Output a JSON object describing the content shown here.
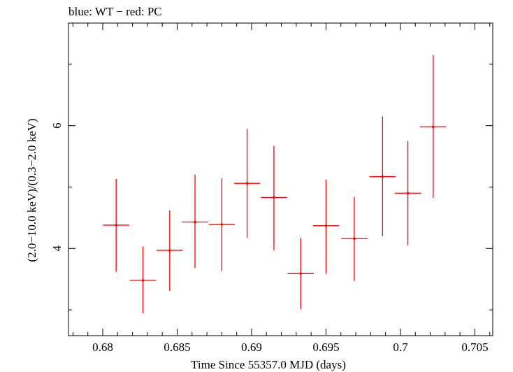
{
  "chart_data": {
    "type": "scatter",
    "title": "blue: WT − red: PC",
    "xlabel": "Time Since 55357.0 MJD (days)",
    "ylabel": "(2.0−10.0 keV)/(0.3−2.0 keV)",
    "xlim": [
      0.6777,
      0.7062
    ],
    "ylim": [
      2.58,
      7.67
    ],
    "x_major_ticks": [
      0.68,
      0.685,
      0.69,
      0.695,
      0.7,
      0.705
    ],
    "x_tick_labels": [
      "0.68",
      "0.685",
      "0.69",
      "0.695",
      "0.7",
      "0.705"
    ],
    "y_major_ticks": [
      4,
      6
    ],
    "y_tick_labels": [
      "4",
      "6"
    ],
    "grid": false,
    "series": [
      {
        "color": "#ff0000",
        "points": [
          {
            "x": 0.6809,
            "xerr": 0.00088,
            "y": 4.38,
            "ylo": 3.62,
            "yhi": 5.13
          },
          {
            "x": 0.6827,
            "xerr": 0.00088,
            "y": 3.48,
            "ylo": 2.94,
            "yhi": 4.03
          },
          {
            "x": 0.6845,
            "xerr": 0.00088,
            "y": 3.97,
            "ylo": 3.31,
            "yhi": 4.62
          },
          {
            "x": 0.6862,
            "xerr": 0.00088,
            "y": 4.43,
            "ylo": 3.68,
            "yhi": 5.2
          },
          {
            "x": 0.688,
            "xerr": 0.00088,
            "y": 4.39,
            "ylo": 3.63,
            "yhi": 5.14
          },
          {
            "x": 0.6897,
            "xerr": 0.00088,
            "y": 5.06,
            "ylo": 4.17,
            "yhi": 5.95
          },
          {
            "x": 0.6915,
            "xerr": 0.00088,
            "y": 4.83,
            "ylo": 3.97,
            "yhi": 5.67
          },
          {
            "x": 0.6933,
            "xerr": 0.00088,
            "y": 3.59,
            "ylo": 3.01,
            "yhi": 4.17
          },
          {
            "x": 0.695,
            "xerr": 0.00088,
            "y": 4.37,
            "ylo": 3.59,
            "yhi": 5.12
          },
          {
            "x": 0.6969,
            "xerr": 0.00088,
            "y": 4.16,
            "ylo": 3.47,
            "yhi": 4.84
          },
          {
            "x": 0.6988,
            "xerr": 0.00088,
            "y": 5.17,
            "ylo": 4.2,
            "yhi": 6.15
          },
          {
            "x": 0.7005,
            "xerr": 0.00088,
            "y": 4.9,
            "ylo": 4.05,
            "yhi": 5.75
          },
          {
            "x": 0.7022,
            "xerr": 0.00088,
            "y": 5.98,
            "ylo": 4.82,
            "yhi": 7.15
          }
        ]
      }
    ]
  }
}
